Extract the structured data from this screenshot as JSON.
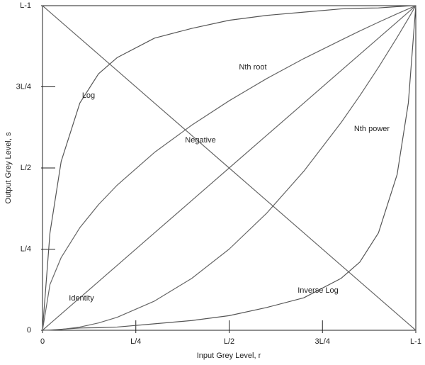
{
  "chart_data": {
    "type": "line",
    "x_label": "Input Grey Level, r",
    "y_label": "Output Grey Level, s",
    "x": [
      0,
      0.02,
      0.05,
      0.1,
      0.15,
      0.2,
      0.3,
      0.4,
      0.5,
      0.6,
      0.7,
      0.8,
      0.85,
      0.9,
      0.95,
      0.98,
      1
    ],
    "series": [
      {
        "name": "Identity",
        "color": "#666666",
        "values": [
          0,
          0.02,
          0.05,
          0.1,
          0.15,
          0.2,
          0.3,
          0.4,
          0.5,
          0.6,
          0.7,
          0.8,
          0.85,
          0.9,
          0.95,
          0.98,
          1
        ]
      },
      {
        "name": "Negative",
        "color": "#666666",
        "values": [
          1,
          0.98,
          0.95,
          0.9,
          0.85,
          0.8,
          0.7,
          0.6,
          0.5,
          0.4,
          0.3,
          0.2,
          0.15,
          0.1,
          0.05,
          0.02,
          0
        ]
      },
      {
        "name": "Log",
        "color": "#555555",
        "values": [
          0,
          0.3,
          0.52,
          0.7,
          0.79,
          0.84,
          0.9,
          0.93,
          0.955,
          0.97,
          0.98,
          0.99,
          0.992,
          0.993,
          0.997,
          0.999,
          1
        ]
      },
      {
        "name": "Inverse Log",
        "color": "#555555",
        "values": [
          0,
          0.001,
          0.003,
          0.007,
          0.008,
          0.01,
          0.02,
          0.03,
          0.045,
          0.07,
          0.1,
          0.16,
          0.21,
          0.3,
          0.48,
          0.7,
          1
        ]
      },
      {
        "name": "Nth root",
        "color": "#666666",
        "values": [
          0,
          0.141,
          0.224,
          0.316,
          0.387,
          0.447,
          0.548,
          0.632,
          0.707,
          0.775,
          0.837,
          0.894,
          0.922,
          0.949,
          0.975,
          0.99,
          1
        ]
      },
      {
        "name": "Nth power",
        "color": "#666666",
        "values": [
          0,
          0.0004,
          0.0025,
          0.01,
          0.0225,
          0.04,
          0.09,
          0.16,
          0.25,
          0.36,
          0.49,
          0.64,
          0.7225,
          0.81,
          0.9025,
          0.9604,
          1
        ]
      }
    ],
    "xlim": [
      0,
      1
    ],
    "ylim": [
      0,
      1
    ],
    "xticks": [
      0,
      {
        "value": 0.25,
        "label": "L/4"
      },
      {
        "value": 0.5,
        "label": "L/2"
      },
      {
        "value": 0.75,
        "label": "3L/4"
      },
      {
        "value": 1,
        "label": "L-1"
      }
    ],
    "yticks": [
      0,
      {
        "value": 0.25,
        "label": "L/4"
      },
      {
        "value": 0.5,
        "label": "L/2"
      },
      {
        "value": 0.75,
        "label": "3L/4"
      },
      {
        "value": 1,
        "label": "L-1"
      }
    ]
  }
}
